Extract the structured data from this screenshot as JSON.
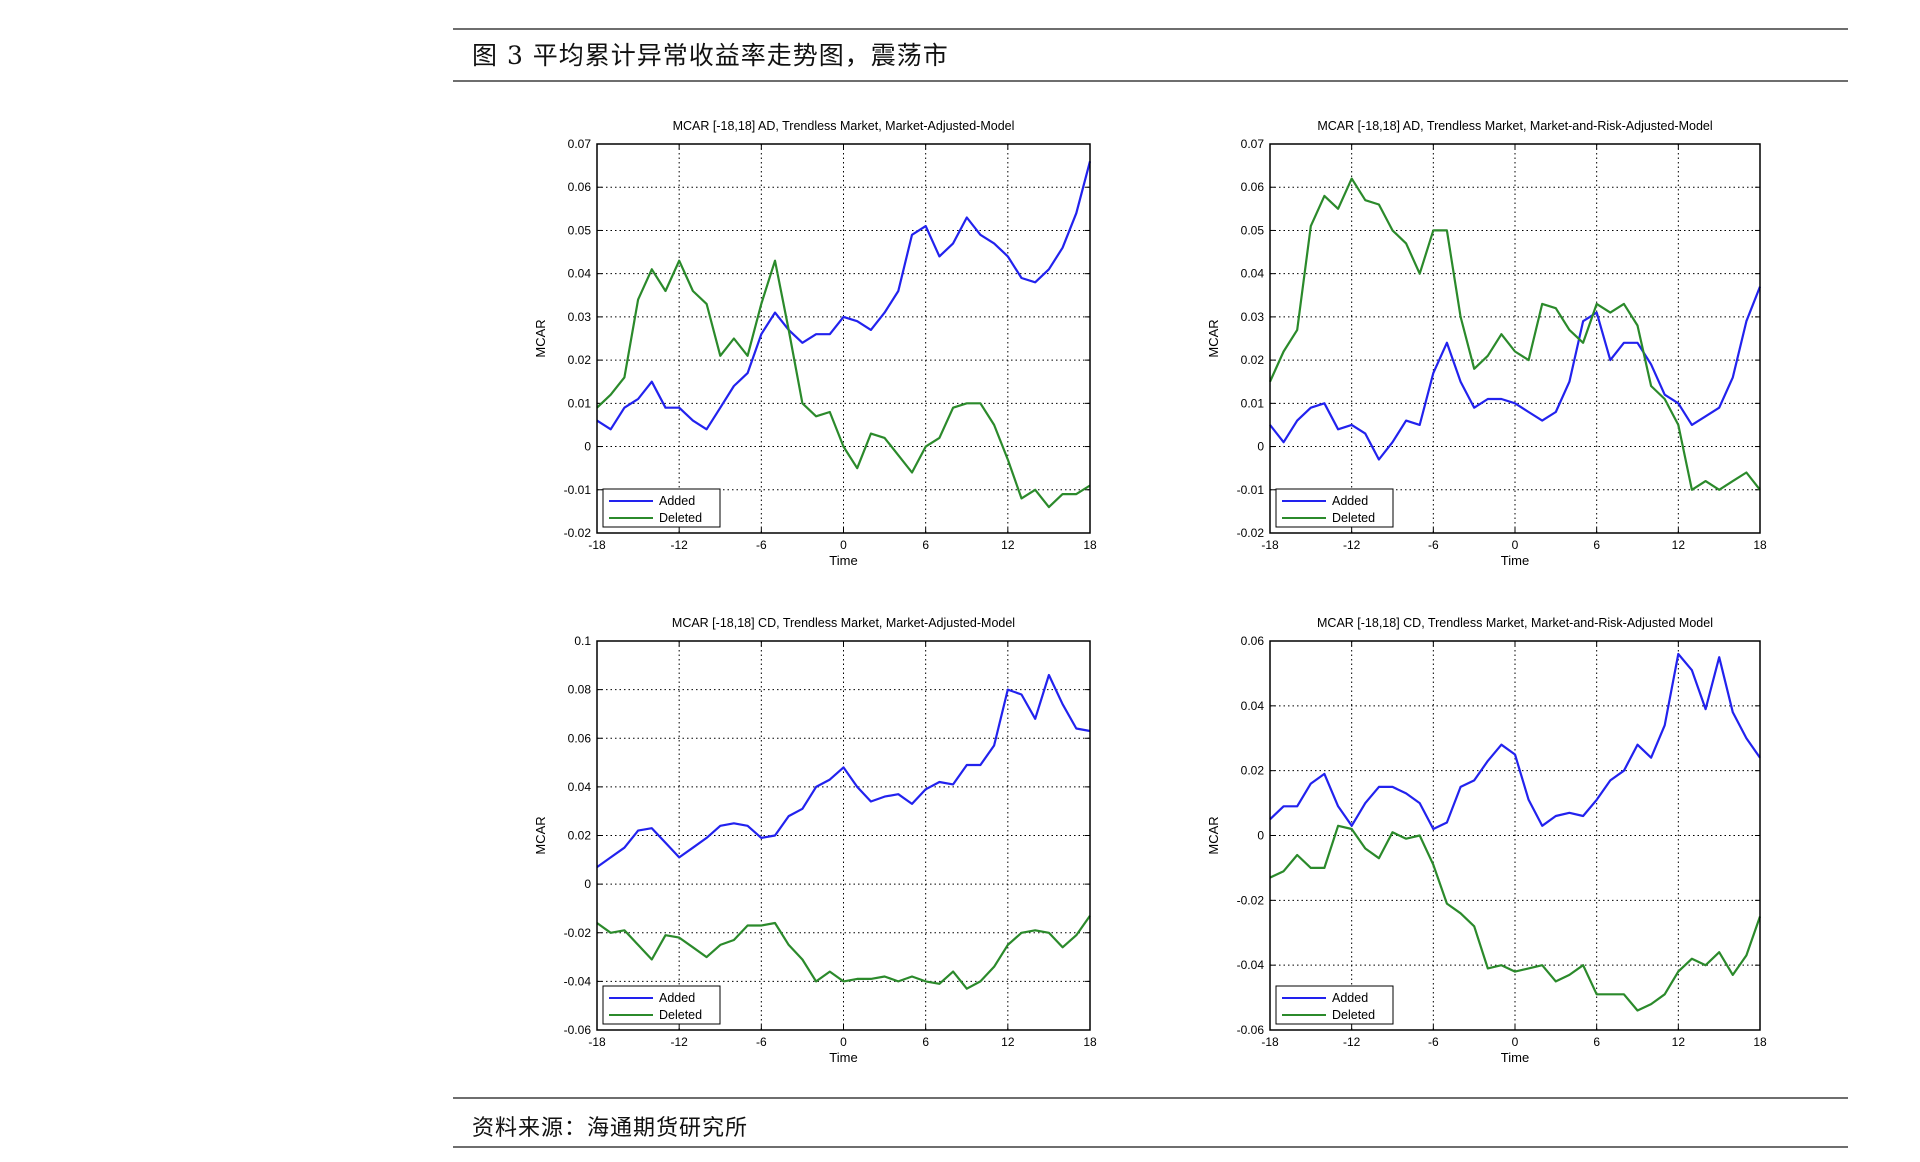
{
  "header": {
    "title": "图 3 平均累计异常收益率走势图，震荡市"
  },
  "footer": {
    "source": "资料来源：海通期货研究所"
  },
  "colors": {
    "added": "#2222ee",
    "deleted": "#2b8a2b"
  },
  "chart_data": [
    {
      "type": "line",
      "title": "MCAR [-18,18] AD, Trendless Market, Market-Adjusted-Model",
      "xlabel": "Time",
      "ylabel": "MCAR",
      "xlim": [
        -18,
        18
      ],
      "ylim": [
        -0.02,
        0.07
      ],
      "xticks": [
        -18,
        -12,
        -6,
        0,
        6,
        12,
        18
      ],
      "xtick_labels": [
        "-18",
        "-12",
        "-6",
        "0",
        "6",
        "12",
        "18"
      ],
      "yticks": [
        -0.02,
        -0.01,
        0,
        0.01,
        0.02,
        0.03,
        0.04,
        0.05,
        0.06,
        0.07
      ],
      "ytick_labels": [
        "-0.02",
        "-0.01",
        "0",
        "0.01",
        "0.02",
        "0.03",
        "0.04",
        "0.05",
        "0.06",
        "0.07"
      ],
      "grid": true,
      "legend": "bottom-left",
      "x": [
        -18,
        -17,
        -16,
        -15,
        -14,
        -13,
        -12,
        -11,
        -10,
        -9,
        -8,
        -7,
        -6,
        -5,
        -4,
        -3,
        -2,
        -1,
        0,
        1,
        2,
        3,
        4,
        5,
        6,
        7,
        8,
        9,
        10,
        11,
        12,
        13,
        14,
        15,
        16,
        17,
        18
      ],
      "series": [
        {
          "name": "Added",
          "values": [
            0.006,
            0.004,
            0.009,
            0.011,
            0.015,
            0.009,
            0.009,
            0.006,
            0.004,
            0.009,
            0.014,
            0.017,
            0.026,
            0.031,
            0.027,
            0.024,
            0.026,
            0.026,
            0.03,
            0.029,
            0.027,
            0.031,
            0.036,
            0.049,
            0.051,
            0.044,
            0.047,
            0.053,
            0.049,
            0.047,
            0.044,
            0.039,
            0.038,
            0.041,
            0.046,
            0.054,
            0.066
          ]
        },
        {
          "name": "Deleted",
          "values": [
            0.009,
            0.012,
            0.016,
            0.034,
            0.041,
            0.036,
            0.043,
            0.036,
            0.033,
            0.021,
            0.025,
            0.021,
            0.033,
            0.043,
            0.027,
            0.01,
            0.007,
            0.008,
            0.0,
            -0.005,
            0.003,
            0.002,
            -0.002,
            -0.006,
            0.0,
            0.002,
            0.009,
            0.01,
            0.01,
            0.005,
            -0.003,
            -0.012,
            -0.01,
            -0.014,
            -0.011,
            -0.011,
            -0.009
          ]
        }
      ]
    },
    {
      "type": "line",
      "title": "MCAR [-18,18] AD, Trendless Market, Market-and-Risk-Adjusted-Model",
      "xlabel": "Time",
      "ylabel": "MCAR",
      "xlim": [
        -18,
        18
      ],
      "ylim": [
        -0.02,
        0.07
      ],
      "xticks": [
        -18,
        -12,
        -6,
        0,
        6,
        12,
        18
      ],
      "xtick_labels": [
        "-18",
        "-12",
        "-6",
        "0",
        "6",
        "12",
        "18"
      ],
      "yticks": [
        -0.02,
        -0.01,
        0,
        0.01,
        0.02,
        0.03,
        0.04,
        0.05,
        0.06,
        0.07
      ],
      "ytick_labels": [
        "-0.02",
        "-0.01",
        "0",
        "0.01",
        "0.02",
        "0.03",
        "0.04",
        "0.05",
        "0.06",
        "0.07"
      ],
      "grid": true,
      "legend": "bottom-left",
      "x": [
        -18,
        -17,
        -16,
        -15,
        -14,
        -13,
        -12,
        -11,
        -10,
        -9,
        -8,
        -7,
        -6,
        -5,
        -4,
        -3,
        -2,
        -1,
        0,
        1,
        2,
        3,
        4,
        5,
        6,
        7,
        8,
        9,
        10,
        11,
        12,
        13,
        14,
        15,
        16,
        17,
        18
      ],
      "series": [
        {
          "name": "Added",
          "values": [
            0.005,
            0.001,
            0.006,
            0.009,
            0.01,
            0.004,
            0.005,
            0.003,
            -0.003,
            0.001,
            0.006,
            0.005,
            0.017,
            0.024,
            0.015,
            0.009,
            0.011,
            0.011,
            0.01,
            0.008,
            0.006,
            0.008,
            0.015,
            0.029,
            0.031,
            0.02,
            0.024,
            0.024,
            0.019,
            0.012,
            0.01,
            0.005,
            0.007,
            0.009,
            0.016,
            0.029,
            0.037
          ]
        },
        {
          "name": "Deleted",
          "values": [
            0.015,
            0.022,
            0.027,
            0.051,
            0.058,
            0.055,
            0.062,
            0.057,
            0.056,
            0.05,
            0.047,
            0.04,
            0.05,
            0.05,
            0.03,
            0.018,
            0.021,
            0.026,
            0.022,
            0.02,
            0.033,
            0.032,
            0.027,
            0.024,
            0.033,
            0.031,
            0.033,
            0.028,
            0.014,
            0.011,
            0.005,
            -0.01,
            -0.008,
            -0.01,
            -0.008,
            -0.006,
            -0.01
          ]
        }
      ]
    },
    {
      "type": "line",
      "title": "MCAR [-18,18] CD, Trendless Market, Market-Adjusted-Model",
      "xlabel": "Time",
      "ylabel": "MCAR",
      "xlim": [
        -18,
        18
      ],
      "ylim": [
        -0.06,
        0.1
      ],
      "xticks": [
        -18,
        -12,
        -6,
        0,
        6,
        12,
        18
      ],
      "xtick_labels": [
        "-18",
        "-12",
        "-6",
        "0",
        "6",
        "12",
        "18"
      ],
      "yticks": [
        -0.06,
        -0.04,
        -0.02,
        0,
        0.02,
        0.04,
        0.06,
        0.08,
        0.1
      ],
      "ytick_labels": [
        "-0.06",
        "-0.04",
        "-0.02",
        "0",
        "0.02",
        "0.04",
        "0.06",
        "0.08",
        "0.1"
      ],
      "grid": true,
      "legend": "bottom-left",
      "x": [
        -18,
        -17,
        -16,
        -15,
        -14,
        -13,
        -12,
        -11,
        -10,
        -9,
        -8,
        -7,
        -6,
        -5,
        -4,
        -3,
        -2,
        -1,
        0,
        1,
        2,
        3,
        4,
        5,
        6,
        7,
        8,
        9,
        10,
        11,
        12,
        13,
        14,
        15,
        16,
        17,
        18
      ],
      "series": [
        {
          "name": "Added",
          "values": [
            0.007,
            0.011,
            0.015,
            0.022,
            0.023,
            0.017,
            0.011,
            0.015,
            0.019,
            0.024,
            0.025,
            0.024,
            0.019,
            0.02,
            0.028,
            0.031,
            0.04,
            0.043,
            0.048,
            0.04,
            0.034,
            0.036,
            0.037,
            0.033,
            0.039,
            0.042,
            0.041,
            0.049,
            0.049,
            0.057,
            0.08,
            0.078,
            0.068,
            0.086,
            0.074,
            0.064,
            0.063
          ]
        },
        {
          "name": "Deleted",
          "values": [
            -0.016,
            -0.02,
            -0.019,
            -0.025,
            -0.031,
            -0.021,
            -0.022,
            -0.026,
            -0.03,
            -0.025,
            -0.023,
            -0.017,
            -0.017,
            -0.016,
            -0.025,
            -0.031,
            -0.04,
            -0.036,
            -0.04,
            -0.039,
            -0.039,
            -0.038,
            -0.04,
            -0.038,
            -0.04,
            -0.041,
            -0.036,
            -0.043,
            -0.04,
            -0.034,
            -0.025,
            -0.02,
            -0.019,
            -0.02,
            -0.026,
            -0.021,
            -0.013
          ]
        }
      ]
    },
    {
      "type": "line",
      "title": "MCAR [-18,18] CD, Trendless Market, Market-and-Risk-Adjusted Model",
      "xlabel": "Time",
      "ylabel": "MCAR",
      "xlim": [
        -18,
        18
      ],
      "ylim": [
        -0.06,
        0.06
      ],
      "xticks": [
        -18,
        -12,
        -6,
        0,
        6,
        12,
        18
      ],
      "xtick_labels": [
        "-18",
        "-12",
        "-6",
        "0",
        "6",
        "12",
        "18"
      ],
      "yticks": [
        -0.06,
        -0.04,
        -0.02,
        0,
        0.02,
        0.04,
        0.06
      ],
      "ytick_labels": [
        "-0.06",
        "-0.04",
        "-0.02",
        "0",
        "0.02",
        "0.04",
        "0.06"
      ],
      "grid": true,
      "legend": "bottom-left",
      "x": [
        -18,
        -17,
        -16,
        -15,
        -14,
        -13,
        -12,
        -11,
        -10,
        -9,
        -8,
        -7,
        -6,
        -5,
        -4,
        -3,
        -2,
        -1,
        0,
        1,
        2,
        3,
        4,
        5,
        6,
        7,
        8,
        9,
        10,
        11,
        12,
        13,
        14,
        15,
        16,
        17,
        18
      ],
      "series": [
        {
          "name": "Added",
          "values": [
            0.005,
            0.009,
            0.009,
            0.016,
            0.019,
            0.009,
            0.003,
            0.01,
            0.015,
            0.015,
            0.013,
            0.01,
            0.002,
            0.004,
            0.015,
            0.017,
            0.023,
            0.028,
            0.025,
            0.011,
            0.003,
            0.006,
            0.007,
            0.006,
            0.011,
            0.017,
            0.02,
            0.028,
            0.024,
            0.034,
            0.056,
            0.051,
            0.039,
            0.055,
            0.038,
            0.03,
            0.024
          ]
        },
        {
          "name": "Deleted",
          "values": [
            -0.013,
            -0.011,
            -0.006,
            -0.01,
            -0.01,
            0.003,
            0.002,
            -0.004,
            -0.007,
            0.001,
            -0.001,
            0.0,
            -0.009,
            -0.021,
            -0.024,
            -0.028,
            -0.041,
            -0.04,
            -0.042,
            -0.041,
            -0.04,
            -0.045,
            -0.043,
            -0.04,
            -0.049,
            -0.049,
            -0.049,
            -0.054,
            -0.052,
            -0.049,
            -0.042,
            -0.038,
            -0.04,
            -0.036,
            -0.043,
            -0.037,
            -0.025
          ]
        }
      ]
    }
  ]
}
